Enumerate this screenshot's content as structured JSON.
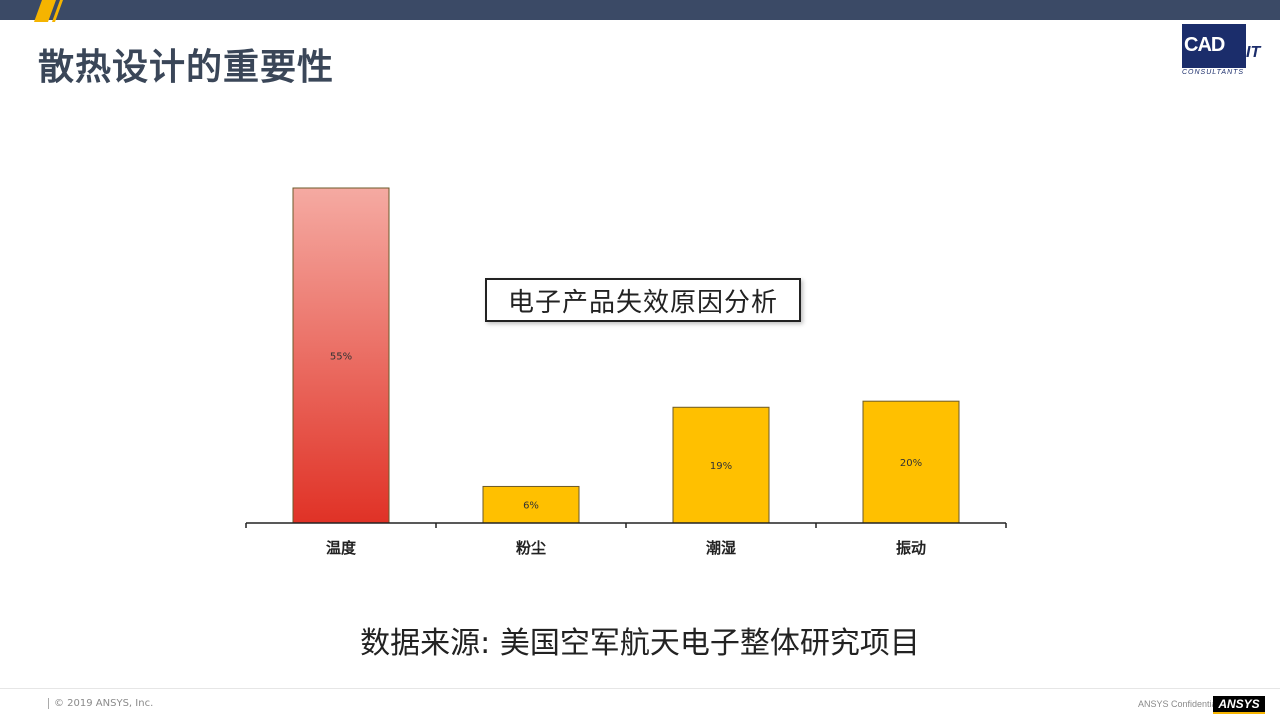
{
  "slide": {
    "title": "散热设计的重要性",
    "source_note": "数据来源: 美国空军航天电子整体研究项目"
  },
  "logo": {
    "main": "CAD",
    "suffix": "IT",
    "subtitle": "CONSULTANTS"
  },
  "footer": {
    "copyright": "© 2019 ANSYS, Inc.",
    "confidential": "ANSYS Confidential",
    "brand": "ANSYS"
  },
  "colors": {
    "bar_highlight_top": "#f5aaa2",
    "bar_highlight_bottom": "#e03226",
    "bar_default": "#ffc000",
    "header_bar": "#3b4a66",
    "accent": "#f5b400"
  },
  "chart_data": {
    "type": "bar",
    "title": "电子产品失效原因分析",
    "categories": [
      "温度",
      "粉尘",
      "潮湿",
      "振动"
    ],
    "values": [
      55,
      6,
      19,
      20
    ],
    "data_labels": [
      "55%",
      "6%",
      "19%",
      "20%"
    ],
    "unit": "%",
    "ylim": [
      0,
      55
    ],
    "grid": false,
    "legend": "none",
    "highlight_index": 0
  }
}
